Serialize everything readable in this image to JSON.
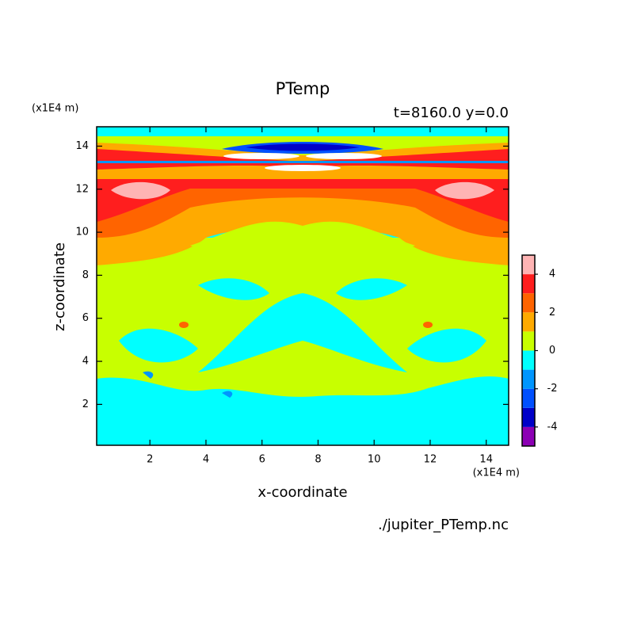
{
  "chart_data": {
    "type": "contour",
    "title": "PTemp",
    "subtitle": "t=8160.0 y=0.0",
    "x_label": "x-coordinate",
    "y_label": "z-coordinate",
    "x_unit": "(x1E4 m)",
    "y_unit": "(x1E4 m)",
    "source": "./jupiter_PTemp.nc",
    "xlim": [
      0.1,
      14.8
    ],
    "ylim": [
      0.1,
      14.9
    ],
    "xticks": [
      2,
      4,
      6,
      8,
      10,
      12,
      14
    ],
    "yticks": [
      2,
      4,
      6,
      8,
      10,
      12,
      14
    ],
    "levels": [
      -5,
      -4,
      -3,
      -2,
      -1,
      0,
      1,
      2,
      3,
      4,
      5
    ],
    "colors": [
      "#8c00b4",
      "#0000c8",
      "#0050ff",
      "#0096ff",
      "#00ffff",
      "#c8ff00",
      "#ffaa00",
      "#ff6400",
      "#ff1e1e",
      "#ffb4b4"
    ],
    "colorbar_ticks": [
      -4,
      -2,
      0,
      2,
      4
    ]
  }
}
